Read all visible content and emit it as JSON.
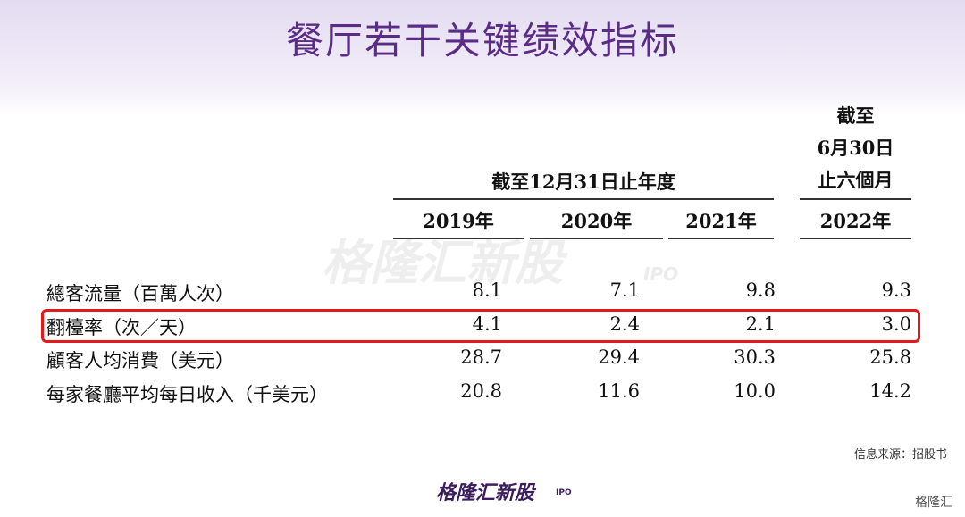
{
  "title": "餐厅若干关键绩效指标",
  "table": {
    "group_headers": [
      "截至12月31日止年度",
      [
        "截至",
        "6月30日",
        "止六個月"
      ]
    ],
    "columns": [
      "2019年",
      "2020年",
      "2021年",
      "2022年"
    ],
    "rows": [
      {
        "label": "總客流量（百萬人次）",
        "values": [
          "8.1",
          "7.1",
          "9.8",
          "9.3"
        ]
      },
      {
        "label": "翻檯率（次／天）",
        "values": [
          "4.1",
          "2.4",
          "2.1",
          "3.0"
        ]
      },
      {
        "label": "顧客人均消費（美元）",
        "values": [
          "28.7",
          "29.4",
          "30.3",
          "25.8"
        ]
      },
      {
        "label": "每家餐廳平均每日收入（千美元）",
        "values": [
          "20.8",
          "11.6",
          "10.0",
          "14.2"
        ]
      }
    ]
  },
  "watermark": {
    "name": "格隆汇新股",
    "tag": "IPO"
  },
  "source": "信息来源：招股书",
  "footer_logo": {
    "name": "格隆汇新股",
    "tag": "IPO"
  },
  "corner_logo": "格隆汇"
}
